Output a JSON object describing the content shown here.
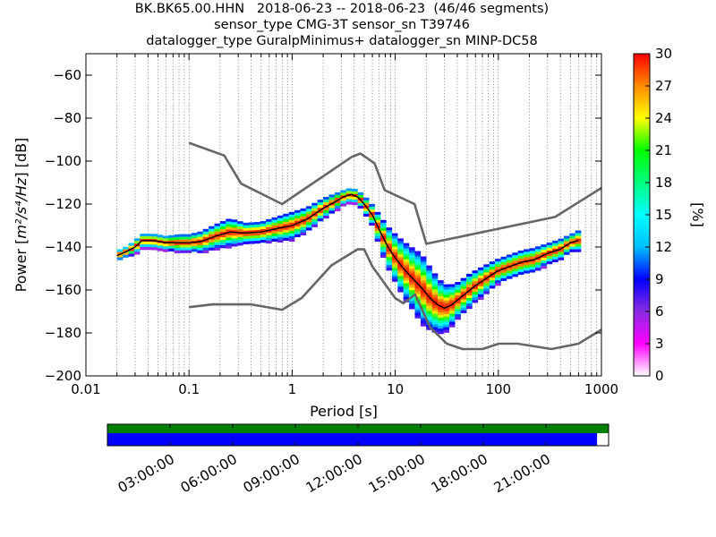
{
  "title": {
    "line1": "BK.BK65.00.HHN   2018-06-23 -- 2018-06-23  (46/46 segments)",
    "line2": "sensor_type CMG-3T sensor_sn T39746",
    "line3": "datalogger_type GuralpMinimus+ datalogger_sn MINP-DC58"
  },
  "chart_data": {
    "type": "heatmap",
    "xlabel": "Period [s]",
    "ylabel_prefix": "Power [",
    "ylabel_math": "m²/s⁴/Hz",
    "ylabel_suffix": "] [dB]",
    "x_scale": "log",
    "xlim": [
      0.01,
      1000
    ],
    "ylim": [
      -200,
      -50
    ],
    "x_ticks": [
      {
        "value": 0.01,
        "label": "0.01"
      },
      {
        "value": 0.1,
        "label": "0.1"
      },
      {
        "value": 1,
        "label": "1"
      },
      {
        "value": 10,
        "label": "10"
      },
      {
        "value": 100,
        "label": "100"
      },
      {
        "value": 1000,
        "label": "1000"
      }
    ],
    "y_ticks": [
      {
        "value": -60,
        "label": "−60"
      },
      {
        "value": -80,
        "label": "−80"
      },
      {
        "value": -100,
        "label": "−100"
      },
      {
        "value": -120,
        "label": "−120"
      },
      {
        "value": -140,
        "label": "−140"
      },
      {
        "value": -160,
        "label": "−160"
      },
      {
        "value": -180,
        "label": "−180"
      },
      {
        "value": -200,
        "label": "−200"
      }
    ],
    "grid": "dotted vertical lines at periods",
    "colorbar": {
      "label": "[%]",
      "min": 0,
      "max": 30,
      "ticks": [
        "0",
        "3",
        "6",
        "9",
        "12",
        "15",
        "18",
        "21",
        "24",
        "27",
        "30"
      ],
      "colors": [
        "#ffffff",
        "#ff00ff",
        "#8a2be2",
        "#0000ff",
        "#00bfff",
        "#00ffff",
        "#00ff7f",
        "#00ff00",
        "#ffff00",
        "#ff8c00",
        "#ff0000"
      ]
    },
    "nhnm": {
      "name": "",
      "color": "#666666",
      "x": [
        0.1,
        0.22,
        0.32,
        0.8,
        3.8,
        4.6,
        6.3,
        7.9,
        15.4,
        20,
        354.8,
        1000
      ],
      "y": [
        -91.5,
        -97.4,
        -110.5,
        -120,
        -98,
        -96.5,
        -101,
        -113.5,
        -120,
        -138.5,
        -126,
        -112.5
      ]
    },
    "nlnm": {
      "name": "",
      "color": "#666666",
      "x": [
        0.1,
        0.17,
        0.4,
        0.8,
        1.24,
        2.4,
        4.3,
        5,
        6,
        10,
        12,
        15.6,
        21.9,
        31.6,
        45,
        70,
        101,
        154,
        328,
        600,
        1000
      ],
      "y": [
        -168,
        -166.7,
        -166.7,
        -169.2,
        -163.7,
        -148.6,
        -141.1,
        -141.1,
        -149,
        -163.8,
        -166.2,
        -162.1,
        -177.5,
        -185,
        -187.5,
        -187.5,
        -185,
        -185,
        -187.5,
        -185,
        -178.5
      ]
    },
    "mode": {
      "name": "",
      "color": "#000000",
      "x": [
        0.02,
        0.025,
        0.03,
        0.035,
        0.045,
        0.06,
        0.08,
        0.1,
        0.13,
        0.18,
        0.25,
        0.35,
        0.5,
        0.7,
        1.0,
        1.4,
        2.0,
        2.6,
        3.2,
        3.8,
        4.4,
        5.0,
        6.0,
        7.0,
        8.5,
        10,
        12,
        15,
        18,
        22,
        26,
        30,
        35,
        42,
        50,
        60,
        80,
        100,
        130,
        170,
        220,
        300,
        400,
        500,
        600
      ],
      "y": [
        -144,
        -142,
        -140,
        -137,
        -137,
        -138,
        -138,
        -138,
        -137.5,
        -135,
        -133,
        -133.5,
        -133,
        -131.5,
        -130,
        -127,
        -122,
        -119,
        -116.5,
        -115.5,
        -117,
        -120,
        -125,
        -132,
        -140,
        -145,
        -150,
        -155,
        -159,
        -164,
        -167,
        -168.5,
        -167,
        -164,
        -161,
        -158,
        -154,
        -151,
        -149,
        -147,
        -146,
        -143,
        -141,
        -138,
        -137
      ],
      "spread": [
        1.5,
        1.5,
        2,
        2,
        2,
        2,
        2.5,
        2.5,
        3,
        3.5,
        4,
        3,
        3,
        3.5,
        4,
        3.5,
        3,
        2.5,
        2,
        2,
        2,
        2.5,
        3,
        4.5,
        6,
        7,
        8,
        9,
        10,
        9,
        8,
        7,
        6,
        5,
        5,
        4.5,
        4,
        3.5,
        3.5,
        3.5,
        3.5,
        3,
        3,
        2.5,
        3
      ]
    },
    "timeline": {
      "labels": [
        "03:00:00",
        "06:00:00",
        "09:00:00",
        "12:00:00",
        "15:00:00",
        "18:00:00",
        "21:00:00"
      ],
      "positions_hours": [
        3,
        6,
        9,
        12,
        15,
        18,
        21
      ],
      "range_hours": [
        0,
        24
      ],
      "data_colors": {
        "top": "#008000",
        "bottom": "#0000ff"
      },
      "coverage_end_fraction": 0.977
    }
  }
}
